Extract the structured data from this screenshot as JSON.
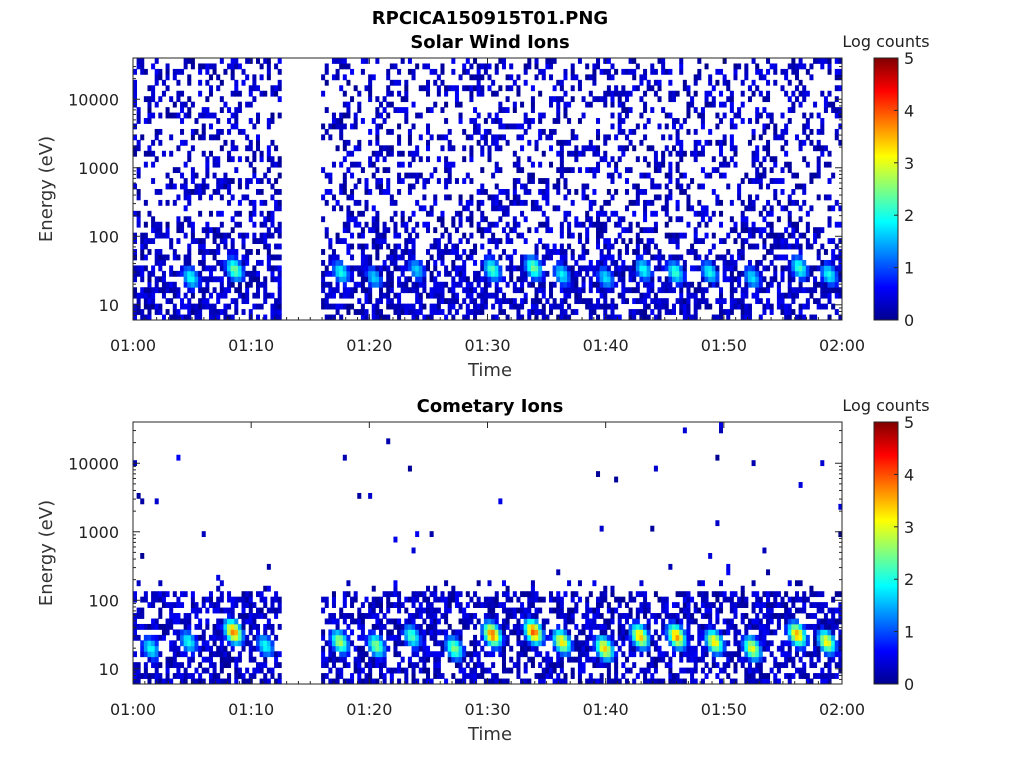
{
  "figure": {
    "title": "RPCICA150915T01.PNG"
  },
  "colorbar": {
    "label": "Log counts",
    "ticks": [
      "0",
      "1",
      "2",
      "3",
      "4",
      "5"
    ],
    "range": [
      0,
      5
    ],
    "colormap": "jet",
    "colors": [
      "#00008f",
      "#0000ff",
      "#00ffff",
      "#ffff00",
      "#ff0000",
      "#800000"
    ]
  },
  "chart_data": [
    {
      "type": "heatmap",
      "title": "Solar Wind Ions",
      "xlabel": "Time",
      "ylabel": "Energy (eV)",
      "xticks": [
        "01:00",
        "01:10",
        "01:20",
        "01:30",
        "01:40",
        "01:50",
        "02:00"
      ],
      "xlim_minutes": [
        0,
        60
      ],
      "yticks": [
        "10",
        "100",
        "1000",
        "10000"
      ],
      "ylim_eV": [
        6,
        40000
      ],
      "yscale": "log",
      "data_gap_minutes": [
        12.5,
        15.8
      ],
      "background_noise": "scattered low counts (log counts 0-0.7) across 10 eV - 30 keV",
      "peaks": [
        {
          "t_min": 4.9,
          "energy_eV": 25,
          "log_counts": 2.0
        },
        {
          "t_min": 8.6,
          "energy_eV": 33,
          "log_counts": 2.5
        },
        {
          "t_min": 17.6,
          "energy_eV": 30,
          "log_counts": 2.0
        },
        {
          "t_min": 20.4,
          "energy_eV": 25,
          "log_counts": 1.7
        },
        {
          "t_min": 24.0,
          "energy_eV": 33,
          "log_counts": 1.7
        },
        {
          "t_min": 30.4,
          "energy_eV": 33,
          "log_counts": 2.3
        },
        {
          "t_min": 33.9,
          "energy_eV": 35,
          "log_counts": 2.5
        },
        {
          "t_min": 36.3,
          "energy_eV": 28,
          "log_counts": 1.9
        },
        {
          "t_min": 40.0,
          "energy_eV": 25,
          "log_counts": 1.8
        },
        {
          "t_min": 43.2,
          "energy_eV": 33,
          "log_counts": 2.0
        },
        {
          "t_min": 45.9,
          "energy_eV": 30,
          "log_counts": 2.2
        },
        {
          "t_min": 48.8,
          "energy_eV": 30,
          "log_counts": 2.0
        },
        {
          "t_min": 52.4,
          "energy_eV": 25,
          "log_counts": 1.8
        },
        {
          "t_min": 56.4,
          "energy_eV": 35,
          "log_counts": 2.2
        },
        {
          "t_min": 58.9,
          "energy_eV": 28,
          "log_counts": 2.0
        }
      ]
    },
    {
      "type": "heatmap",
      "title": "Cometary Ions",
      "xlabel": "Time",
      "ylabel": "Energy (eV)",
      "xticks": [
        "01:00",
        "01:10",
        "01:20",
        "01:30",
        "01:40",
        "01:50",
        "02:00"
      ],
      "xlim_minutes": [
        0,
        60
      ],
      "yticks": [
        "10",
        "100",
        "1000",
        "10000"
      ],
      "ylim_eV": [
        6,
        40000
      ],
      "yscale": "log",
      "data_gap_minutes": [
        12.5,
        15.8
      ],
      "background_noise": "sparse isolated counts above 100 eV, dense counts 6-120 eV",
      "peaks": [
        {
          "t_min": 1.5,
          "energy_eV": 20,
          "log_counts": 2.0
        },
        {
          "t_min": 4.7,
          "energy_eV": 25,
          "log_counts": 2.0
        },
        {
          "t_min": 8.5,
          "energy_eV": 35,
          "log_counts": 3.8
        },
        {
          "t_min": 11.2,
          "energy_eV": 22,
          "log_counts": 2.0
        },
        {
          "t_min": 17.5,
          "energy_eV": 25,
          "log_counts": 2.8
        },
        {
          "t_min": 20.6,
          "energy_eV": 22,
          "log_counts": 2.6
        },
        {
          "t_min": 23.6,
          "energy_eV": 30,
          "log_counts": 2.3
        },
        {
          "t_min": 27.2,
          "energy_eV": 20,
          "log_counts": 2.6
        },
        {
          "t_min": 30.4,
          "energy_eV": 32,
          "log_counts": 3.9
        },
        {
          "t_min": 33.9,
          "energy_eV": 35,
          "log_counts": 4.0
        },
        {
          "t_min": 36.3,
          "energy_eV": 25,
          "log_counts": 3.3
        },
        {
          "t_min": 39.9,
          "energy_eV": 20,
          "log_counts": 3.4
        },
        {
          "t_min": 42.9,
          "energy_eV": 30,
          "log_counts": 3.5
        },
        {
          "t_min": 46.0,
          "energy_eV": 30,
          "log_counts": 3.7
        },
        {
          "t_min": 49.2,
          "energy_eV": 25,
          "log_counts": 3.3
        },
        {
          "t_min": 52.4,
          "energy_eV": 20,
          "log_counts": 3.1
        },
        {
          "t_min": 56.2,
          "energy_eV": 32,
          "log_counts": 3.6
        },
        {
          "t_min": 58.7,
          "energy_eV": 25,
          "log_counts": 3.2
        }
      ]
    }
  ]
}
